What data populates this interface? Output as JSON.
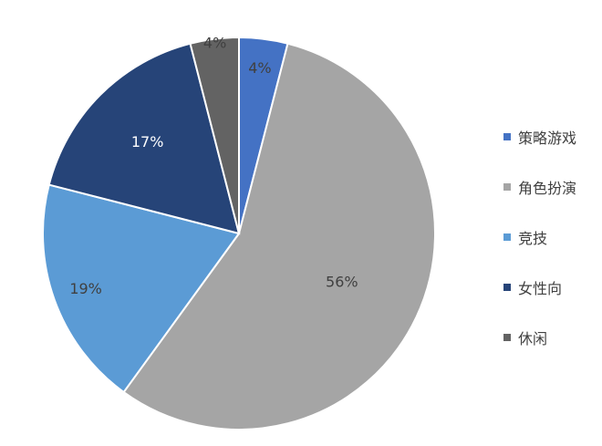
{
  "chart_data": {
    "type": "pie",
    "title": "",
    "start_angle_deg": 0,
    "direction": "clockwise",
    "legend_position": "right",
    "slices": [
      {
        "name": "策略游戏",
        "value": 4,
        "label": "4%",
        "color": "#4472C4",
        "label_color": "#404040"
      },
      {
        "name": "角色扮演",
        "value": 56,
        "label": "56%",
        "color": "#A5A5A5",
        "label_color": "#404040"
      },
      {
        "name": "竞技",
        "value": 19,
        "label": "19%",
        "color": "#5B9BD5",
        "label_color": "#404040"
      },
      {
        "name": "女性向",
        "value": 17,
        "label": "17%",
        "color": "#264478",
        "label_color": "#FFFFFF"
      },
      {
        "name": "休闲",
        "value": 4,
        "label": "4%",
        "color": "#636363",
        "label_color": "#404040"
      }
    ]
  }
}
